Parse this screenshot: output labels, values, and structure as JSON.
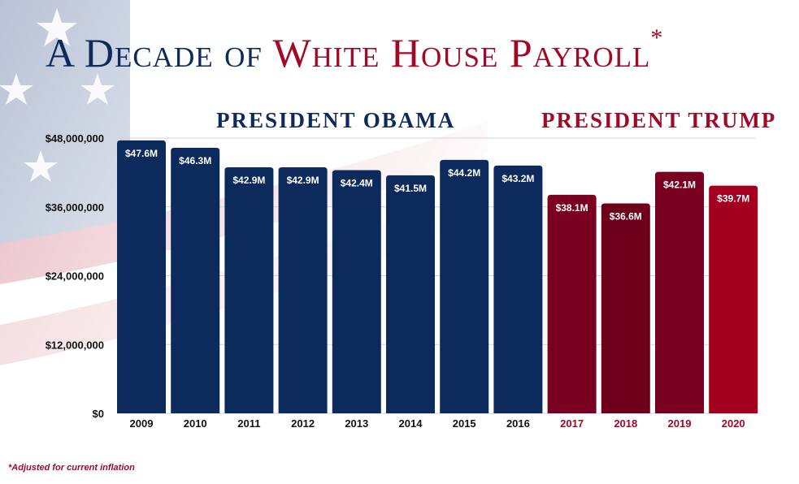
{
  "title": {
    "part1": "A Decade of",
    "part2": "White House Payroll",
    "asterisk": "*"
  },
  "groups": {
    "obama": "PRESIDENT OBAMA",
    "trump": "PRESIDENT TRUMP"
  },
  "footnote": "*Adjusted for current inflation",
  "colors": {
    "obama": "#0d2a5c",
    "trump_dark": "#790020",
    "trump_light": "#a3001f",
    "title_red": "#a00a26"
  },
  "chart_data": {
    "type": "bar",
    "title": "A Decade of White House Payroll*",
    "xlabel": "",
    "ylabel": "",
    "ylim": [
      0,
      48000000
    ],
    "yticks": [
      0,
      12000000,
      24000000,
      36000000,
      48000000
    ],
    "ytick_labels": [
      "$0",
      "$12,000,000",
      "$24,000,000",
      "$36,000,000",
      "$48,000,000"
    ],
    "grid": true,
    "categories": [
      "2009",
      "2010",
      "2011",
      "2012",
      "2013",
      "2014",
      "2015",
      "2016",
      "2017",
      "2018",
      "2019",
      "2020"
    ],
    "values": [
      47600000,
      46300000,
      42900000,
      42900000,
      42400000,
      41500000,
      44200000,
      43200000,
      38100000,
      36600000,
      42100000,
      39700000
    ],
    "data_labels": [
      "$47.6M",
      "$46.3M",
      "$42.9M",
      "$42.9M",
      "$42.4M",
      "$41.5M",
      "$44.2M",
      "$43.2M",
      "$38.1M",
      "$36.6M",
      "$42.1M",
      "$39.7M"
    ],
    "bar_colors": [
      "#0d2a5c",
      "#0d2a5c",
      "#0d2a5c",
      "#0d2a5c",
      "#0d2a5c",
      "#0d2a5c",
      "#0d2a5c",
      "#0d2a5c",
      "#790020",
      "#6f001c",
      "#790020",
      "#a3001f"
    ],
    "category_label_colors": [
      "#111",
      "#111",
      "#111",
      "#111",
      "#111",
      "#111",
      "#111",
      "#111",
      "#a00a26",
      "#a00a26",
      "#a00a26",
      "#a00a26"
    ]
  }
}
